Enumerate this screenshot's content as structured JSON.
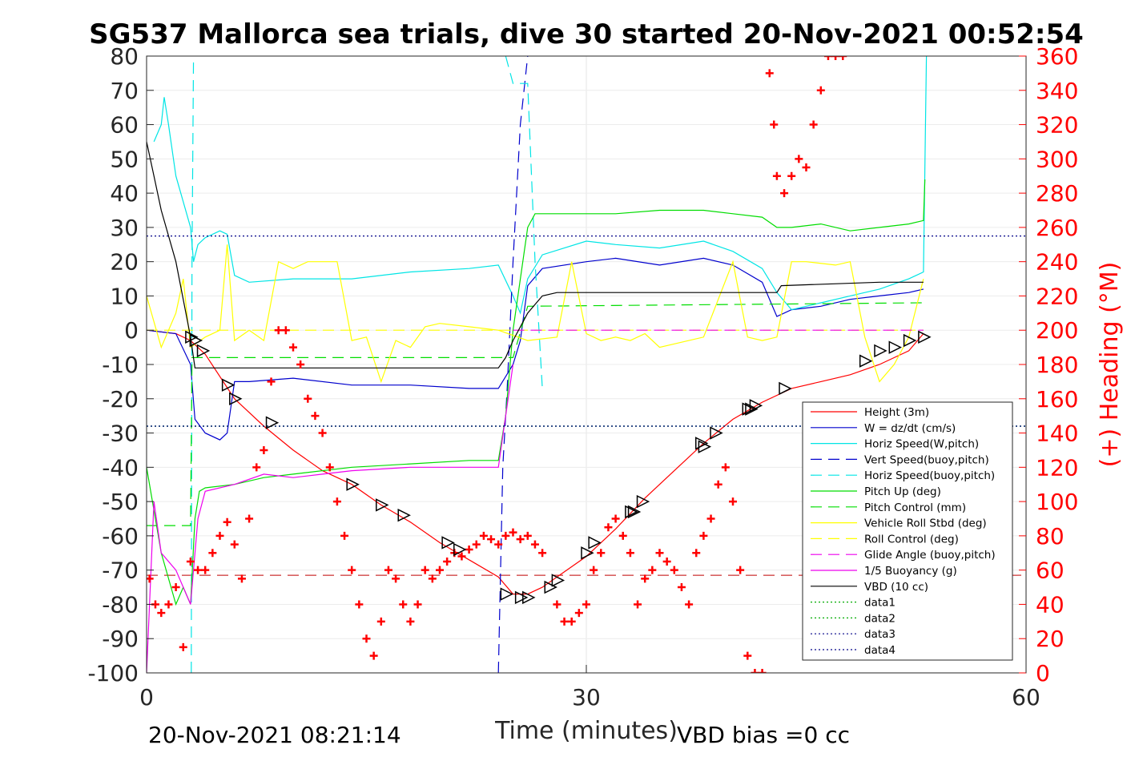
{
  "chart_data": {
    "type": "line",
    "title": "SG537 Mallorca sea trials, dive 30 started 20-Nov-2021 00:52:54",
    "xlabel": "Time (minutes)",
    "ylabel_right": "(+) Heading (°M)",
    "xlim": [
      0,
      60
    ],
    "ylim": [
      -100,
      80
    ],
    "ylim_right": [
      0,
      360
    ],
    "x_ticks": [
      "0",
      "30",
      "60"
    ],
    "y_ticks": [
      "80",
      "70",
      "60",
      "50",
      "40",
      "30",
      "20",
      "10",
      "0",
      "-10",
      "-20",
      "-30",
      "-40",
      "-50",
      "-60",
      "-70",
      "-80",
      "-90",
      "-100"
    ],
    "y_ticks_right": [
      "360",
      "340",
      "320",
      "300",
      "280",
      "260",
      "240",
      "220",
      "200",
      "180",
      "160",
      "140",
      "120",
      "100",
      "80",
      "60",
      "40",
      "20",
      "0"
    ],
    "grid": true,
    "legend_position": "bottom-right",
    "footer_left": "20-Nov-2021 08:21:14",
    "footer_right": "VBD bias =0 cc",
    "colors": {
      "height": "#ff0000",
      "w": "#0000cd",
      "horiz": "#00e5e5",
      "pitch": "#00dd00",
      "roll": "#ffff00",
      "glide": "#ee00ee",
      "vbd": "#000000",
      "heading": "#ff0000"
    },
    "series": [
      {
        "name": "Height (3m)",
        "x": [
          0,
          2,
          3,
          4,
          6,
          8,
          10,
          12,
          14,
          16,
          18,
          20,
          22,
          24,
          25,
          26,
          27,
          28,
          30,
          32,
          34,
          36,
          38,
          40,
          42,
          44,
          46,
          48,
          50,
          52,
          53
        ],
        "y": [
          0,
          -1,
          -3,
          -7,
          -20,
          -28,
          -35,
          -41,
          -45,
          -51,
          -56,
          -62,
          -67,
          -72,
          -77,
          -77,
          -75,
          -72,
          -66,
          -58,
          -49,
          -41,
          -33,
          -26,
          -21,
          -17,
          -15,
          -13,
          -10,
          -6,
          -1
        ]
      },
      {
        "name": "W = dz/dt (cm/s)",
        "x": [
          0,
          2,
          3,
          3.3,
          4,
          5,
          5.5,
          6,
          7,
          10,
          14,
          18,
          22,
          24,
          25,
          25.5,
          26,
          27,
          30,
          32,
          35,
          38,
          40,
          42,
          43,
          44,
          46,
          48,
          50,
          52,
          53
        ],
        "y": [
          0,
          -1,
          -10,
          -26,
          -30,
          -32,
          -30,
          -15,
          -15,
          -14,
          -16,
          -16,
          -17,
          -17,
          -10,
          -3,
          13,
          18,
          20,
          21,
          19,
          21,
          19,
          14,
          4,
          6,
          7,
          9,
          10,
          11,
          12
        ]
      },
      {
        "name": "Horiz Speed(W,pitch)",
        "x": [
          0.5,
          1,
          1.2,
          1.5,
          2,
          3,
          3.2,
          3.5,
          4,
          5,
          5.5,
          6,
          7,
          10,
          14,
          18,
          22,
          24,
          25,
          25.5,
          26,
          27,
          30,
          32,
          35,
          38,
          40,
          42,
          43,
          44,
          46,
          48,
          50,
          52,
          53,
          53.2
        ],
        "y": [
          55,
          60,
          68,
          60,
          45,
          30,
          20,
          25,
          27,
          29,
          28,
          16,
          14,
          15,
          15,
          17,
          18,
          19,
          10,
          5,
          15,
          22,
          26,
          25,
          24,
          26,
          23,
          18,
          11,
          6,
          8,
          10,
          12,
          15,
          17,
          80
        ]
      },
      {
        "name": "Vert Speed(buoy,pitch)",
        "x": [
          24,
          24.3,
          24.6,
          25,
          25.5,
          26
        ],
        "y": [
          -100,
          -40,
          -17,
          20,
          60,
          80
        ]
      },
      {
        "name": "Horiz Speed(buoy,pitch)",
        "x": [
          3.05,
          3.1,
          3.2
        ],
        "y": [
          -100,
          20,
          80
        ]
      },
      {
        "name": "Horiz Speed(buoy,pitch) 2",
        "x": [
          24.5,
          25,
          26,
          26.5,
          27
        ],
        "y": [
          80,
          72,
          72,
          20,
          -17
        ]
      },
      {
        "name": "Pitch Up (deg)",
        "x": [
          0,
          1,
          2,
          2.5,
          3,
          3.3,
          3.6,
          4,
          6,
          8,
          10,
          14,
          18,
          22,
          24,
          24.5,
          25,
          26,
          26.5,
          27,
          30,
          32,
          35,
          38,
          40,
          42,
          43,
          44,
          46,
          48,
          50,
          52,
          53,
          53.1
        ],
        "y": [
          -40,
          -65,
          -80,
          -75,
          -80,
          -55,
          -47,
          -46,
          -45,
          -43,
          -42,
          -40,
          -39,
          -38,
          -38,
          -25,
          0,
          30,
          34,
          34,
          34,
          34,
          35,
          35,
          34,
          33,
          30,
          30,
          31,
          29,
          30,
          31,
          32,
          44
        ]
      },
      {
        "name": "Pitch Control (mm)",
        "x": [
          0,
          3,
          3.1,
          25,
          26,
          53
        ],
        "y": [
          -57,
          -57,
          -8,
          -8,
          7,
          8
        ]
      },
      {
        "name": "Vehicle Roll Stbd (deg)",
        "x": [
          0,
          1,
          2,
          2.5,
          3,
          4,
          5,
          5.5,
          6,
          7,
          8,
          9,
          10,
          11,
          12,
          13,
          14,
          15,
          16,
          17,
          18,
          19,
          20,
          22,
          24,
          26,
          28,
          29,
          30,
          31,
          32,
          33,
          34,
          35,
          38,
          40,
          41,
          42,
          43,
          44,
          45,
          47,
          48,
          49,
          50,
          51,
          52,
          53
        ],
        "y": [
          10,
          -5,
          5,
          15,
          -5,
          -2,
          0,
          25,
          -3,
          0,
          -3,
          20,
          18,
          20,
          20,
          20,
          -3,
          -2,
          -15,
          -3,
          -5,
          1,
          2,
          1,
          0,
          -3,
          -2,
          20,
          -1,
          -3,
          -2,
          -3,
          -1,
          -5,
          -2,
          20,
          -2,
          -3,
          -2,
          20,
          20,
          19,
          20,
          -2,
          -15,
          -10,
          -2,
          15
        ]
      },
      {
        "name": "Roll Control (deg)",
        "x": [
          0,
          3,
          25,
          53
        ],
        "y": [
          0,
          0,
          0,
          0
        ]
      },
      {
        "name": "Glide Angle (buoy,pitch)",
        "x": [
          25,
          53
        ],
        "y": [
          0,
          0
        ]
      },
      {
        "name": "1/5 Buoyancy (g)",
        "x": [
          0,
          0.5,
          1,
          2,
          3,
          3.5,
          4,
          6,
          8,
          10,
          12,
          14,
          18,
          22,
          24,
          24.5,
          25
        ],
        "y": [
          -100,
          -50,
          -65,
          -70,
          -80,
          -55,
          -47,
          -45,
          -42,
          -43,
          -42,
          -41,
          -40,
          -40,
          -40,
          -25,
          -10
        ]
      },
      {
        "name": "VBD (10 cc)",
        "x": [
          0,
          0.5,
          1,
          2,
          3,
          3.3,
          4,
          8,
          16,
          24,
          24.5,
          25,
          26,
          27,
          28,
          30,
          32,
          35,
          38,
          40,
          43,
          43.3,
          50,
          52,
          53
        ],
        "y": [
          55,
          45,
          35,
          20,
          -2,
          -11,
          -11,
          -11,
          -11,
          -11,
          -8,
          -3,
          5,
          10,
          11,
          11,
          11,
          11,
          11,
          11,
          11,
          13,
          14,
          14,
          14
        ]
      },
      {
        "name": "data1",
        "x": [
          0,
          60
        ],
        "y": [
          -28,
          -28
        ]
      },
      {
        "name": "data2",
        "x": [
          0,
          60
        ],
        "y": [
          -28,
          -28
        ]
      },
      {
        "name": "data3",
        "x": [
          0,
          60
        ],
        "y": [
          27.5,
          27.5
        ]
      },
      {
        "name": "data4",
        "x": [
          0,
          60
        ],
        "y": [
          -28,
          -28
        ]
      }
    ],
    "reference_line": {
      "x": [
        0,
        60
      ],
      "y": [
        -71.5,
        -71.5
      ]
    },
    "height_markers": {
      "x": [
        3,
        3.3,
        3.8,
        5.5,
        6,
        8.5,
        14,
        16,
        17.5,
        20.5,
        21.3,
        24.5,
        25.5,
        26,
        27.5,
        28,
        30,
        30.5,
        33,
        33.2,
        33.8,
        37.8,
        38,
        38.8,
        41,
        41.2,
        41.5,
        43.5,
        49,
        50,
        51,
        52,
        53
      ],
      "y": [
        -2,
        -3,
        -6,
        -16,
        -20,
        -27,
        -45,
        -51,
        -54,
        -62,
        -64,
        -77,
        -78,
        -78,
        -75,
        -73,
        -65,
        -62,
        -53,
        -53,
        -50,
        -33,
        -34,
        -30,
        -23,
        -23,
        -22,
        -17,
        -9,
        -6,
        -5,
        -3,
        -2
      ]
    },
    "heading": {
      "name": "(+) Heading",
      "x": [
        0.2,
        0.6,
        1,
        1.5,
        2,
        2.5,
        3,
        3.5,
        4,
        4.5,
        5,
        5.5,
        6,
        6.5,
        7,
        7.5,
        8,
        8.5,
        9,
        9.5,
        10,
        10.5,
        11,
        11.5,
        12,
        12.5,
        13,
        13.5,
        14,
        14.5,
        15,
        15.5,
        16,
        16.5,
        17,
        17.5,
        18,
        18.5,
        19,
        19.5,
        20,
        20.5,
        21,
        21.5,
        22,
        22.5,
        23,
        23.5,
        24,
        24.5,
        25,
        25.5,
        26,
        26.5,
        27,
        28,
        28.5,
        29,
        29.5,
        30,
        30.5,
        31,
        31.5,
        32,
        32.5,
        33,
        33.5,
        34,
        34.5,
        35,
        35.5,
        36,
        36.5,
        37,
        37.5,
        38,
        38.5,
        39,
        39.5,
        40,
        40.5,
        41,
        41.5,
        42,
        42.5,
        42.8,
        43,
        43.5,
        44,
        44.5,
        45,
        45.5,
        46,
        46.5,
        47,
        47.5
      ],
      "y": [
        55,
        40,
        35,
        40,
        50,
        15,
        65,
        60,
        60,
        70,
        80,
        88,
        75,
        55,
        90,
        120,
        130,
        170,
        200,
        200,
        190,
        180,
        160,
        150,
        140,
        120,
        100,
        80,
        60,
        40,
        20,
        10,
        30,
        60,
        55,
        40,
        30,
        40,
        60,
        55,
        60,
        65,
        70,
        68,
        72,
        75,
        80,
        78,
        75,
        80,
        82,
        78,
        80,
        75,
        70,
        40,
        30,
        30,
        35,
        40,
        60,
        70,
        85,
        90,
        80,
        70,
        40,
        55,
        60,
        70,
        65,
        60,
        50,
        40,
        70,
        80,
        90,
        110,
        120,
        100,
        60,
        10,
        0,
        0,
        350,
        320,
        290,
        280,
        290,
        300,
        295,
        320,
        340,
        360,
        360,
        360
      ]
    }
  }
}
